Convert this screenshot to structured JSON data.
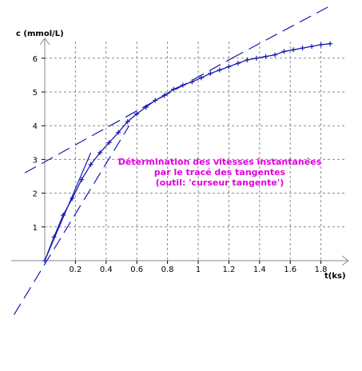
{
  "chart_data": {
    "type": "line",
    "xlabel": "t(ks)",
    "ylabel": "c (mmol/L)",
    "xlim": [
      -0.25,
      1.88
    ],
    "ylim": [
      -1.6,
      6.5
    ],
    "x_ticks": [
      0.2,
      0.4,
      0.6,
      0.8,
      1.0,
      1.2,
      1.4,
      1.6,
      1.8
    ],
    "x_tick_labels": [
      "0.2",
      "0.4",
      "0.6",
      "0.8",
      "1",
      "1.2",
      "1.4",
      "1.6",
      "1.8"
    ],
    "y_ticks": [
      1,
      2,
      3,
      4,
      5,
      6
    ],
    "y_tick_labels": [
      "1",
      "2",
      "3",
      "4",
      "5",
      "6"
    ],
    "grid": true,
    "series": [
      {
        "color": "#1a1ab0",
        "x": [
          0.0,
          0.06,
          0.12,
          0.18,
          0.24,
          0.3,
          0.36,
          0.42,
          0.48,
          0.54,
          0.6,
          0.66,
          0.72,
          0.78,
          0.84,
          0.9,
          0.96,
          1.02,
          1.08,
          1.14,
          1.2,
          1.26,
          1.32,
          1.38,
          1.44,
          1.5,
          1.56,
          1.62,
          1.68,
          1.74,
          1.8,
          1.86
        ],
        "y": [
          0.0,
          0.7,
          1.35,
          1.85,
          2.4,
          2.85,
          3.2,
          3.5,
          3.8,
          4.12,
          4.35,
          4.55,
          4.75,
          4.9,
          5.08,
          5.2,
          5.3,
          5.42,
          5.55,
          5.65,
          5.75,
          5.85,
          5.95,
          6.0,
          6.05,
          6.1,
          6.2,
          6.25,
          6.3,
          6.35,
          6.4,
          6.43
        ]
      }
    ],
    "tangents": [
      {
        "x": [
          0.0,
          0.3
        ],
        "y": [
          0.0,
          3.2
        ],
        "style": "solid"
      },
      {
        "x": [
          -0.2,
          0.55
        ],
        "y": [
          -1.6,
          4.0
        ],
        "style": "dashed"
      },
      {
        "x": [
          -0.13,
          1.22
        ],
        "y": [
          2.6,
          6.0
        ],
        "style": "dashed"
      },
      {
        "x": [
          1.22,
          1.88
        ],
        "y": [
          6.0,
          7.6
        ],
        "style": "dashed"
      }
    ],
    "annotation": {
      "lines": [
        "Détermination des vitesses instantanées",
        "par le tracé des tangentes",
        "(outil: 'curseur tangente')"
      ],
      "color": "#e000e0"
    }
  }
}
